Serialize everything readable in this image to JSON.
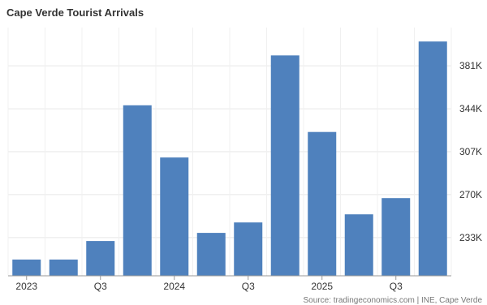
{
  "chart_data": {
    "type": "bar",
    "title": "Cape Verde Tourist Arrivals",
    "source": "Source: tradingeconomics.com | INE, Cape Verde",
    "categories": [
      "2023 Q1",
      "2023 Q2",
      "2023 Q3",
      "2023 Q4",
      "2024 Q1",
      "2024 Q2",
      "2024 Q3",
      "2024 Q4",
      "2025 Q1",
      "2025 Q2",
      "2025 Q3",
      "2025 Q4"
    ],
    "values": [
      214,
      214,
      230,
      347,
      302,
      237,
      246,
      390,
      324,
      253,
      267,
      402
    ],
    "x_tick_labels": [
      {
        "index": 0,
        "label": "2023"
      },
      {
        "index": 2,
        "label": "Q3"
      },
      {
        "index": 4,
        "label": "2024"
      },
      {
        "index": 6,
        "label": "Q3"
      },
      {
        "index": 8,
        "label": "2025"
      },
      {
        "index": 10,
        "label": "Q3"
      }
    ],
    "y_ticks": [
      233,
      270,
      307,
      344,
      381
    ],
    "y_tick_labels": [
      "233K",
      "270K",
      "307K",
      "344K",
      "381K"
    ],
    "ylim": [
      200,
      414
    ],
    "unit": "K",
    "bar_color": "#4f81bd",
    "grid": true,
    "y_axis_position": "right"
  }
}
